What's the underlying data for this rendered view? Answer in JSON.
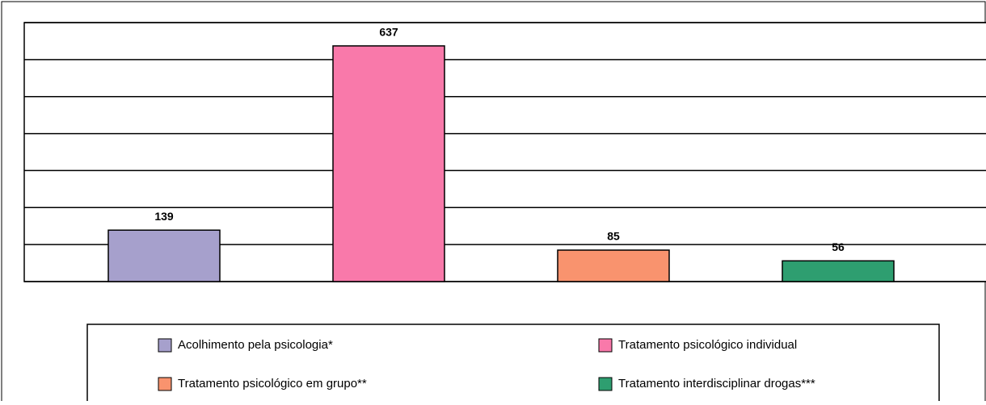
{
  "chart_data": {
    "type": "bar",
    "categories": [
      "Acolhimento pela psicologia*",
      "Tratamento psicológico individual",
      "Tratamento psicológico em grupo**",
      "Tratamento interdisciplinar drogas***"
    ],
    "values": [
      139,
      637,
      85,
      56
    ],
    "colors": [
      "#a6a0cc",
      "#f979aa",
      "#f9936e",
      "#2e9e70"
    ],
    "ylim": [
      0,
      700
    ],
    "yticks": [
      0,
      100,
      200,
      300,
      400,
      500,
      600,
      700
    ],
    "grid": true,
    "legend": "bottom"
  }
}
